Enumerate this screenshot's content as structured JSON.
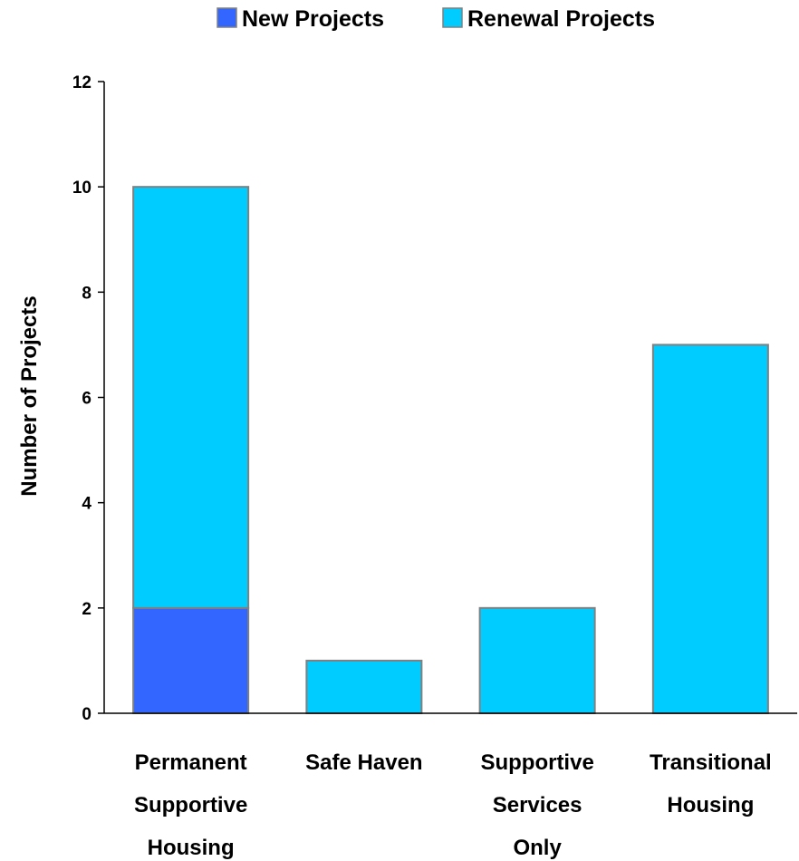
{
  "chart_data": {
    "type": "bar",
    "stacked": true,
    "categories": [
      [
        "Permanent",
        "Supportive",
        "Housing"
      ],
      [
        "Safe Haven"
      ],
      [
        "Supportive",
        "Services",
        "Only"
      ],
      [
        "Transitional",
        "Housing"
      ]
    ],
    "series": [
      {
        "name": "New Projects",
        "color": "#3366ff",
        "values": [
          2,
          0,
          0,
          0
        ]
      },
      {
        "name": "Renewal Projects",
        "color": "#00ccff",
        "values": [
          8,
          1,
          2,
          7
        ]
      }
    ],
    "title": "",
    "xlabel": "",
    "ylabel": "Number of Projects",
    "ylim": [
      0,
      12
    ],
    "yticks": [
      0,
      2,
      4,
      6,
      8,
      10,
      12
    ],
    "grid": false,
    "legend_position": "top",
    "bar_outline_color": "#808080"
  }
}
